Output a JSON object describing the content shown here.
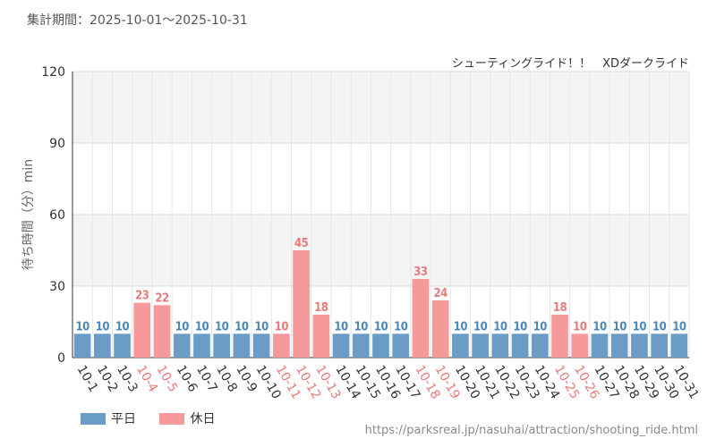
{
  "header": {
    "period": "集計期間：2025-10-01～2025-10-31",
    "attraction": "シューティングライド！！　XDダークライド"
  },
  "colors": {
    "weekday": "#6a9cc6",
    "holiday": "#f5999a",
    "holiday_text": "#e87a7a",
    "weekday_text": "#4a86b8",
    "axis_text": "#333333"
  },
  "chart_data": {
    "type": "bar",
    "title": "",
    "xlabel": "",
    "ylabel": "待ち時間（分）min",
    "ylim": [
      0,
      120
    ],
    "yticks": [
      0,
      30,
      60,
      90,
      120
    ],
    "grid": true,
    "legend_position": "bottom-left",
    "categories": [
      "10-1",
      "10-2",
      "10-3",
      "10-4",
      "10-5",
      "10-6",
      "10-7",
      "10-8",
      "10-9",
      "10-10",
      "10-11",
      "10-12",
      "10-13",
      "10-14",
      "10-15",
      "10-16",
      "10-17",
      "10-18",
      "10-19",
      "10-20",
      "10-21",
      "10-22",
      "10-23",
      "10-24",
      "10-25",
      "10-26",
      "10-27",
      "10-28",
      "10-29",
      "10-30",
      "10-31"
    ],
    "values": [
      10,
      10,
      10,
      23,
      22,
      10,
      10,
      10,
      10,
      10,
      10,
      45,
      18,
      10,
      10,
      10,
      10,
      33,
      24,
      10,
      10,
      10,
      10,
      10,
      18,
      10,
      10,
      10,
      10,
      10,
      10
    ],
    "day_type": [
      "平日",
      "平日",
      "平日",
      "休日",
      "休日",
      "平日",
      "平日",
      "平日",
      "平日",
      "平日",
      "休日",
      "休日",
      "休日",
      "平日",
      "平日",
      "平日",
      "平日",
      "休日",
      "休日",
      "平日",
      "平日",
      "平日",
      "平日",
      "平日",
      "休日",
      "休日",
      "平日",
      "平日",
      "平日",
      "平日",
      "平日"
    ],
    "legend": [
      {
        "name": "平日",
        "color": "#6a9cc6"
      },
      {
        "name": "休日",
        "color": "#f5999a"
      }
    ]
  },
  "footer": {
    "source_url": "https://parksreal.jp/nasuhai/attraction/shooting_ride.html"
  }
}
